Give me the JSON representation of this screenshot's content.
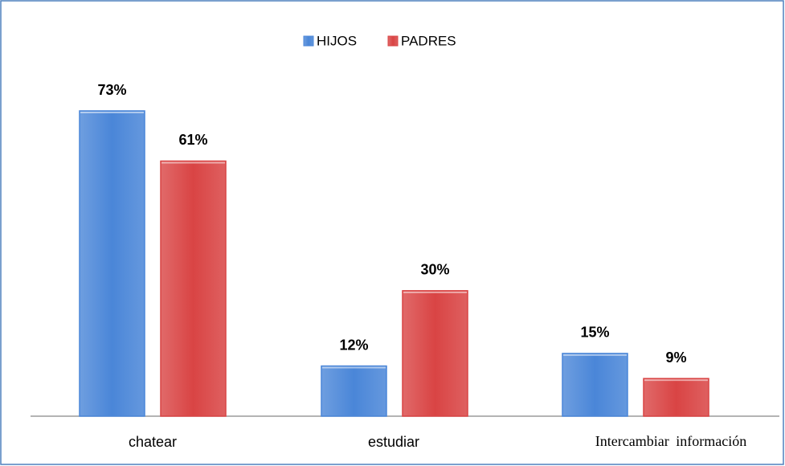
{
  "chart_data": {
    "type": "bar",
    "categories": [
      "chatear",
      "estudiar",
      "Intercambiar información"
    ],
    "series": [
      {
        "name": "HIJOS",
        "color": "#4a86d8",
        "values": [
          73,
          12,
          15
        ],
        "value_labels": [
          "73%",
          "12%",
          "15%"
        ]
      },
      {
        "name": "PADRES",
        "color": "#d94444",
        "values": [
          61,
          30,
          9
        ],
        "value_labels": [
          "61%",
          "30%",
          "9%"
        ]
      }
    ],
    "legend": "top"
  }
}
